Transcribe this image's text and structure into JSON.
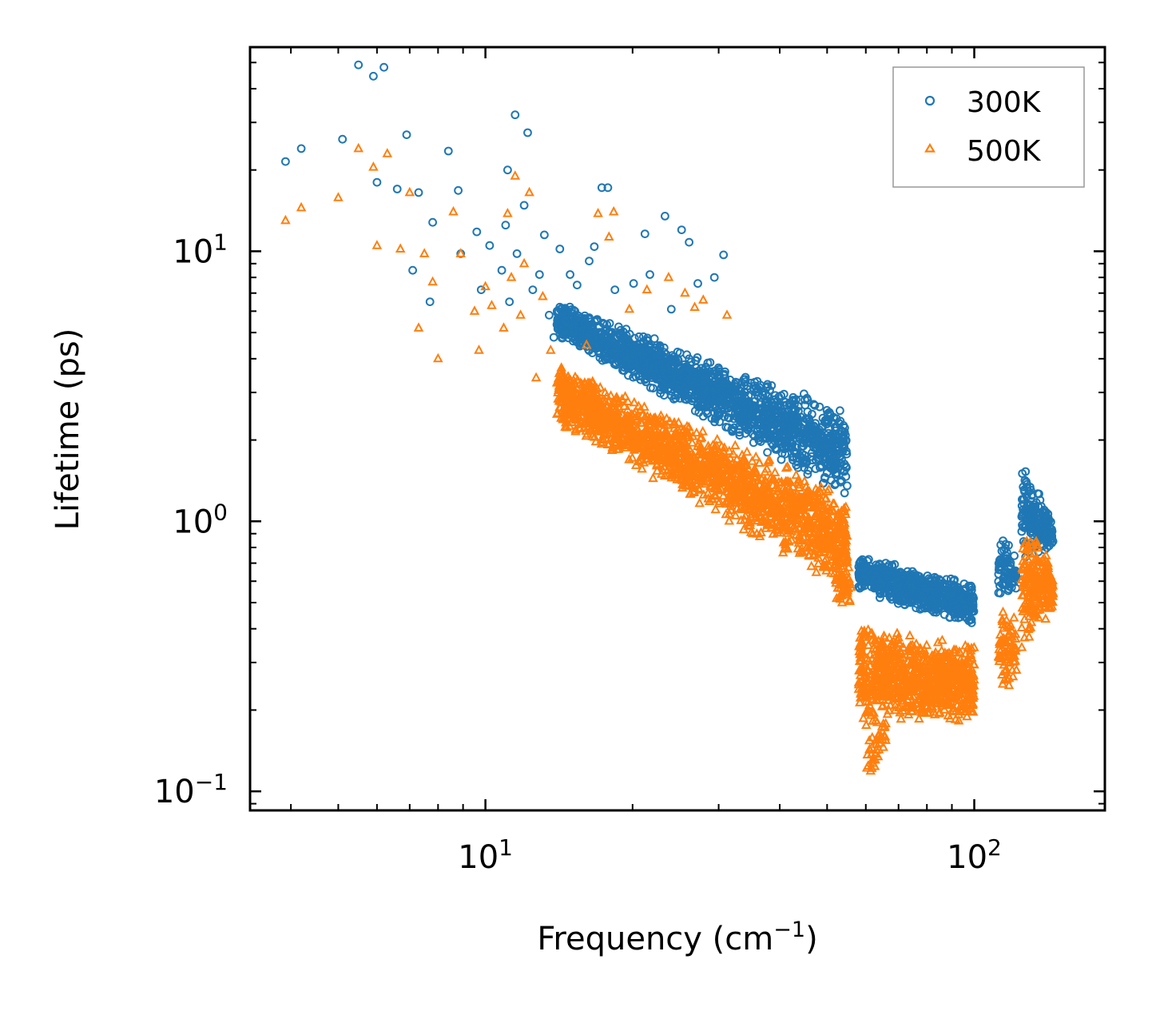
{
  "chart_data": {
    "type": "scatter",
    "title": "",
    "xlabel": "Frequency (cm",
    "xlabel_sup": "−1",
    "xlabel_end": ")",
    "ylabel": "Lifetime (ps)",
    "xscale": "log",
    "yscale": "log",
    "xlim": [
      3.3,
      185
    ],
    "ylim": [
      0.085,
      57
    ],
    "x_ticks": [
      {
        "value": 10,
        "base": "10",
        "exp": "1"
      },
      {
        "value": 100,
        "base": "10",
        "exp": "2"
      }
    ],
    "y_ticks": [
      {
        "value": 0.1,
        "base": "10",
        "exp": "−1"
      },
      {
        "value": 1,
        "base": "10",
        "exp": "0"
      },
      {
        "value": 10,
        "base": "10",
        "exp": "1"
      }
    ],
    "legend": {
      "position": "top-right"
    },
    "series": [
      {
        "name": "300K",
        "marker": "circle",
        "color": "#1f77b4",
        "points": [
          [
            3.9,
            21.5
          ],
          [
            4.2,
            24
          ],
          [
            5.1,
            26
          ],
          [
            5.5,
            49
          ],
          [
            5.9,
            44.5
          ],
          [
            6.0,
            18
          ],
          [
            6.2,
            48
          ],
          [
            6.6,
            17
          ],
          [
            6.9,
            27
          ],
          [
            7.1,
            8.5
          ],
          [
            7.3,
            16.5
          ],
          [
            7.7,
            6.5
          ],
          [
            7.8,
            12.8
          ],
          [
            8.4,
            23.5
          ],
          [
            8.8,
            16.8
          ],
          [
            8.9,
            9.8
          ],
          [
            9.6,
            11.8
          ],
          [
            9.8,
            7.2
          ],
          [
            10.2,
            10.5
          ],
          [
            10.8,
            8.5
          ],
          [
            11.0,
            12.5
          ],
          [
            11.1,
            20
          ],
          [
            11.2,
            6.5
          ],
          [
            11.5,
            32
          ],
          [
            11.6,
            9.8
          ],
          [
            12.0,
            14.8
          ],
          [
            12.2,
            27.5
          ],
          [
            12.5,
            7.2
          ],
          [
            12.9,
            8.2
          ],
          [
            13.2,
            11.5
          ],
          [
            13.5,
            5.8
          ],
          [
            13.8,
            4.8
          ],
          [
            14.2,
            10.2
          ],
          [
            14.9,
            8.2
          ],
          [
            15.4,
            7.5
          ],
          [
            15.6,
            5.5
          ],
          [
            16.3,
            9.2
          ],
          [
            16.7,
            10.4
          ],
          [
            17.3,
            17.2
          ],
          [
            17.8,
            17.2
          ],
          [
            18.4,
            7.2
          ],
          [
            19.3,
            4.8
          ],
          [
            20.1,
            7.6
          ],
          [
            21.2,
            11.6
          ],
          [
            21.7,
            8.2
          ],
          [
            23.3,
            13.5
          ],
          [
            24.0,
            6.1
          ],
          [
            25.2,
            12
          ],
          [
            26.1,
            10.8
          ],
          [
            27.2,
            7.6
          ],
          [
            29.4,
            8.0
          ],
          [
            30.7,
            9.7
          ]
        ],
        "clusters": [
          {
            "x": [
              14,
              55
            ],
            "y_lo": [
              4.8,
              1.2
            ],
            "y_hi": [
              6.5,
              2.6
            ],
            "n": 1700
          },
          {
            "x": [
              58,
              100
            ],
            "y_lo": [
              0.55,
              0.4
            ],
            "y_hi": [
              0.75,
              0.6
            ],
            "n": 700
          },
          {
            "x": [
              112,
              122
            ],
            "y_lo": [
              0.45,
              0.55
            ],
            "y_hi": [
              0.95,
              0.75
            ],
            "n": 80
          },
          {
            "x": [
              125,
              145
            ],
            "y_lo": [
              0.7,
              0.8
            ],
            "y_hi": [
              1.85,
              1.0
            ],
            "n": 200
          }
        ]
      },
      {
        "name": "500K",
        "marker": "triangle",
        "color": "#ff7f0e",
        "points": [
          [
            3.9,
            13
          ],
          [
            4.2,
            14.5
          ],
          [
            5.0,
            15.8
          ],
          [
            5.5,
            24
          ],
          [
            5.9,
            20.5
          ],
          [
            6.0,
            10.5
          ],
          [
            6.3,
            23
          ],
          [
            6.7,
            10.2
          ],
          [
            7.0,
            16.5
          ],
          [
            7.3,
            5.2
          ],
          [
            7.5,
            9.8
          ],
          [
            7.8,
            7.7
          ],
          [
            8.0,
            4.0
          ],
          [
            8.6,
            14
          ],
          [
            8.9,
            9.8
          ],
          [
            9.5,
            6
          ],
          [
            9.7,
            4.3
          ],
          [
            10.0,
            7.4
          ],
          [
            10.3,
            6.3
          ],
          [
            10.9,
            5.2
          ],
          [
            11.1,
            13.8
          ],
          [
            11.3,
            8
          ],
          [
            11.5,
            19
          ],
          [
            11.8,
            5.8
          ],
          [
            12.0,
            9
          ],
          [
            12.3,
            16.5
          ],
          [
            12.7,
            3.4
          ],
          [
            13.1,
            6.8
          ],
          [
            13.6,
            4.3
          ],
          [
            14.3,
            3.7
          ],
          [
            15.3,
            3.0
          ],
          [
            16.1,
            4.5
          ],
          [
            17.0,
            13.8
          ],
          [
            17.9,
            11.3
          ],
          [
            18.3,
            14
          ],
          [
            19.7,
            6.1
          ],
          [
            21.4,
            7.2
          ],
          [
            23.7,
            8.0
          ],
          [
            25.6,
            7.0
          ],
          [
            26.8,
            6.2
          ],
          [
            27.9,
            6.6
          ],
          [
            31.2,
            5.8
          ]
        ],
        "clusters": [
          {
            "x": [
              14,
              55
            ],
            "y_lo": [
              2.3,
              0.55
            ],
            "y_hi": [
              3.8,
              1.3
            ],
            "n": 1800
          },
          {
            "x": [
              52,
              56
            ],
            "y_lo": [
              0.5,
              0.45
            ],
            "y_hi": [
              0.9,
              0.8
            ],
            "n": 60
          },
          {
            "x": [
              58,
              100
            ],
            "y_lo": [
              0.18,
              0.18
            ],
            "y_hi": [
              0.42,
              0.35
            ],
            "n": 900
          },
          {
            "x": [
              60,
              66
            ],
            "y_lo": [
              0.11,
              0.13
            ],
            "y_hi": [
              0.18,
              0.2
            ],
            "n": 40
          },
          {
            "x": [
              112,
              122
            ],
            "y_lo": [
              0.22,
              0.25
            ],
            "y_hi": [
              0.5,
              0.45
            ],
            "n": 80
          },
          {
            "x": [
              125,
              145
            ],
            "y_lo": [
              0.32,
              0.45
            ],
            "y_hi": [
              1.15,
              0.7
            ],
            "n": 220
          }
        ]
      }
    ]
  }
}
